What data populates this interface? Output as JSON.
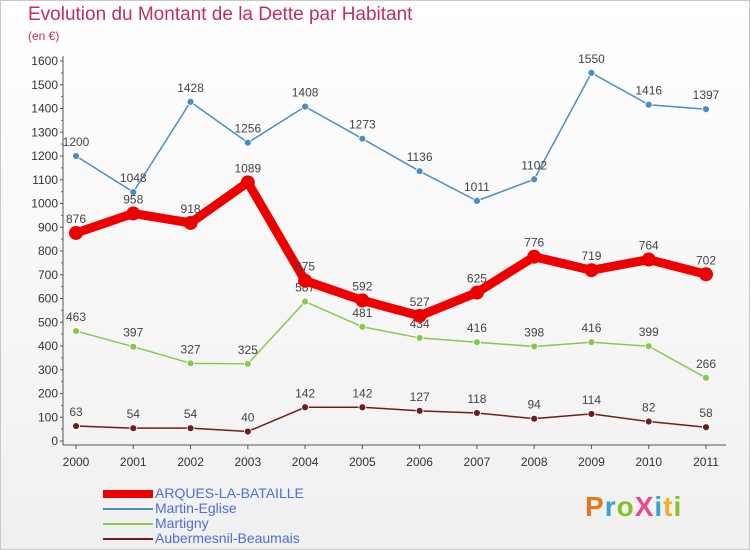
{
  "chart_data": {
    "type": "line",
    "title": "Evolution du Montant de la Dette par Habitant",
    "subtitle": "(en €)",
    "x": [
      "2000",
      "2001",
      "2002",
      "2003",
      "2004",
      "2005",
      "2006",
      "2007",
      "2008",
      "2009",
      "2010",
      "2011"
    ],
    "ylim": [
      0,
      1600
    ],
    "yticks": [
      0,
      100,
      200,
      300,
      400,
      500,
      600,
      700,
      800,
      900,
      1000,
      1100,
      1200,
      1300,
      1400,
      1500,
      1600
    ],
    "grid": false,
    "legend_placement": "bottom-left",
    "series": [
      {
        "name": "Martin-Eglise",
        "color": "#4a8cc8",
        "values": [
          1200,
          1048,
          1428,
          1256,
          1408,
          1273,
          1136,
          1011,
          1102,
          1550,
          1416,
          1397
        ]
      },
      {
        "name": "Martigny",
        "color": "#88c850",
        "values": [
          463,
          397,
          327,
          325,
          587,
          481,
          434,
          416,
          398,
          416,
          399,
          266
        ]
      },
      {
        "name": "Aubermesnil-Beaumais",
        "color": "#6e1e1e",
        "values": [
          63,
          54,
          54,
          40,
          142,
          142,
          127,
          118,
          94,
          114,
          82,
          58
        ]
      },
      {
        "name": "ARQUES-LA-BATAILLE",
        "color": "#ee0000",
        "highlight": true,
        "values": [
          876,
          958,
          918,
          1089,
          675,
          592,
          527,
          625,
          776,
          719,
          764,
          702
        ]
      }
    ]
  },
  "legend": [
    {
      "label": "ARQUES-LA-BATAILLE",
      "color": "#ee0000",
      "thick": true
    },
    {
      "label": "Martin-Eglise",
      "color": "#4a8cc8",
      "thick": false
    },
    {
      "label": "Martigny",
      "color": "#88c850",
      "thick": false
    },
    {
      "label": "Aubermesnil-Beaumais",
      "color": "#6e1e1e",
      "thick": false
    }
  ],
  "logo": {
    "text": "ProXiti",
    "colors": [
      "#e8761e",
      "#3aa0d8",
      "#88c028",
      "#e84a8c",
      "#3aa0d8",
      "#f0b020",
      "#88c028"
    ]
  }
}
